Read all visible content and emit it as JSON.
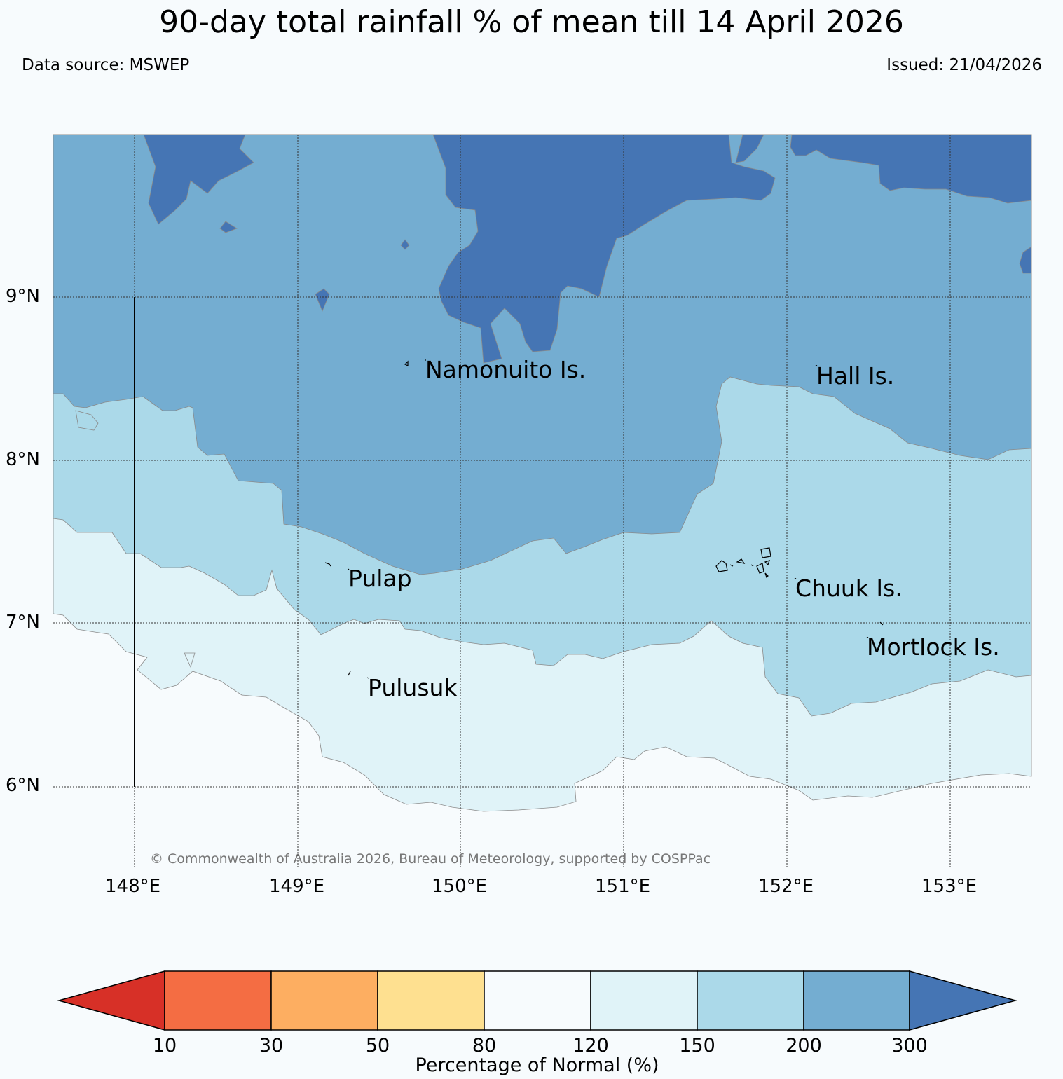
{
  "title": "90-day total rainfall % of mean till 14 April 2026",
  "data_source": "Data source: MSWEP",
  "issued": "Issued: 21/04/2026",
  "copyright": "© Commonwealth of Australia 2026, Bureau of Meteorology, supported by COSPPac",
  "latitude_labels": [
    "9°N",
    "8°N",
    "7°N",
    "6°N"
  ],
  "longitude_labels": [
    "148°E",
    "149°E",
    "150°E",
    "151°E",
    "152°E",
    "153°E"
  ],
  "places": [
    "Namonuito Is.",
    "Hall Is.",
    "Pulap",
    "Chuuk Is.",
    "Mortlock Is.",
    "Pulusuk"
  ],
  "legend": {
    "label": "Percentage of Normal (%)",
    "ticks": [
      "10",
      "30",
      "50",
      "80",
      "120",
      "150",
      "200",
      "300"
    ],
    "colors": [
      "#d73027",
      "#f46d43",
      "#fdae61",
      "#fee090",
      "#f7fbfd",
      "#e0f3f8",
      "#abd9e9",
      "#74add1",
      "#4575b4"
    ]
  }
}
